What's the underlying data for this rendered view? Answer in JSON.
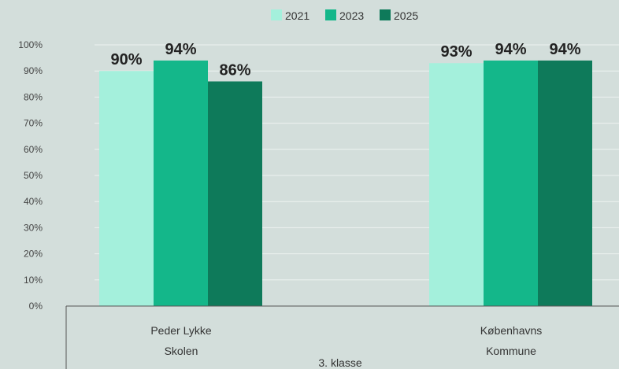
{
  "chart_data": {
    "type": "bar",
    "categories": [
      [
        "Peder Lykke",
        "Skolen"
      ],
      [
        "Københavns",
        "Kommune"
      ]
    ],
    "group_label": "3. klasse",
    "series": [
      {
        "name": "2021",
        "values": [
          90,
          93
        ],
        "color": "#a4f0dc"
      },
      {
        "name": "2023",
        "values": [
          94,
          94
        ],
        "color": "#14b78a"
      },
      {
        "name": "2025",
        "values": [
          86,
          94
        ],
        "color": "#0e7a5a"
      }
    ],
    "data_labels": [
      [
        "90%",
        "93%"
      ],
      [
        "94%",
        "94%"
      ],
      [
        "86%",
        "94%"
      ]
    ],
    "y_ticks": [
      "0%",
      "10%",
      "20%",
      "30%",
      "40%",
      "50%",
      "60%",
      "70%",
      "80%",
      "90%",
      "100%"
    ],
    "ylim": [
      0,
      100
    ],
    "grid": true,
    "legend_position": "top-center",
    "title": "",
    "xlabel": "",
    "ylabel": ""
  }
}
